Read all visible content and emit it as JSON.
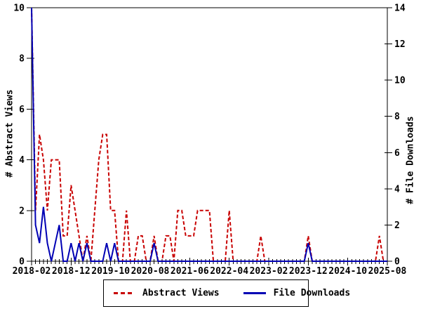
{
  "colors": {
    "background": "#ffffff",
    "axis": "#000000",
    "abstract_views": "#c80000",
    "file_downloads": "#0000b4"
  },
  "chart_data": {
    "type": "line",
    "title": "",
    "ylabel": "# Abstract Views",
    "y2label": "# File Downloads",
    "ylim_left": [
      0,
      10
    ],
    "ylim_right": [
      0,
      14
    ],
    "y_ticks_left": [
      0,
      2,
      4,
      6,
      8,
      10
    ],
    "y_ticks_right": [
      0,
      2,
      4,
      6,
      8,
      10,
      12,
      14
    ],
    "x_tick_labels": [
      "2018-02",
      "2018-12",
      "2019-10",
      "2020-08",
      "2021-06",
      "2022-04",
      "2023-02",
      "2023-12",
      "2024-10",
      "2025-08"
    ],
    "x_major_tick_every_months": 10,
    "x_minor_tick_every_months": 1,
    "months_total": 90,
    "grid": false,
    "legend_position": "bottom-center",
    "series": [
      {
        "name": "Abstract Views",
        "axis": "left",
        "style": "dashed",
        "color": "#c80000",
        "values": [
          10,
          2,
          5,
          4,
          2,
          4,
          4,
          4,
          1,
          1,
          3,
          2,
          1,
          0,
          1,
          0,
          2,
          4,
          5,
          5,
          2,
          2,
          0,
          0,
          2,
          0,
          0,
          1,
          1,
          0,
          0,
          1,
          0,
          0,
          1,
          1,
          0,
          2,
          2,
          1,
          1,
          1,
          2,
          2,
          2,
          2,
          0,
          0,
          0,
          0,
          2,
          0,
          0,
          0,
          0,
          0,
          0,
          0,
          1,
          0,
          0,
          0,
          0,
          0,
          0,
          0,
          0,
          0,
          0,
          0,
          1,
          0,
          0,
          0,
          0,
          0,
          0,
          0,
          0,
          0,
          0,
          0,
          0,
          0,
          0,
          0,
          0,
          0,
          1,
          0,
          0
        ]
      },
      {
        "name": "File Downloads",
        "axis": "right",
        "style": "solid",
        "color": "#0000b4",
        "values": [
          14,
          2,
          1,
          3,
          1,
          0,
          1,
          2,
          0,
          0,
          1,
          0,
          1,
          0,
          1,
          0,
          0,
          0,
          0,
          1,
          0,
          1,
          0,
          0,
          0,
          0,
          0,
          0,
          0,
          0,
          0,
          1,
          0,
          0,
          0,
          0,
          0,
          0,
          0,
          0,
          0,
          0,
          0,
          0,
          0,
          0,
          0,
          0,
          0,
          0,
          0,
          0,
          0,
          0,
          0,
          0,
          0,
          0,
          0,
          0,
          0,
          0,
          0,
          0,
          0,
          0,
          0,
          0,
          0,
          0,
          1,
          0,
          0,
          0,
          0,
          0,
          0,
          0,
          0,
          0,
          0,
          0,
          0,
          0,
          0,
          0,
          0,
          0,
          0,
          0,
          0
        ]
      }
    ]
  }
}
